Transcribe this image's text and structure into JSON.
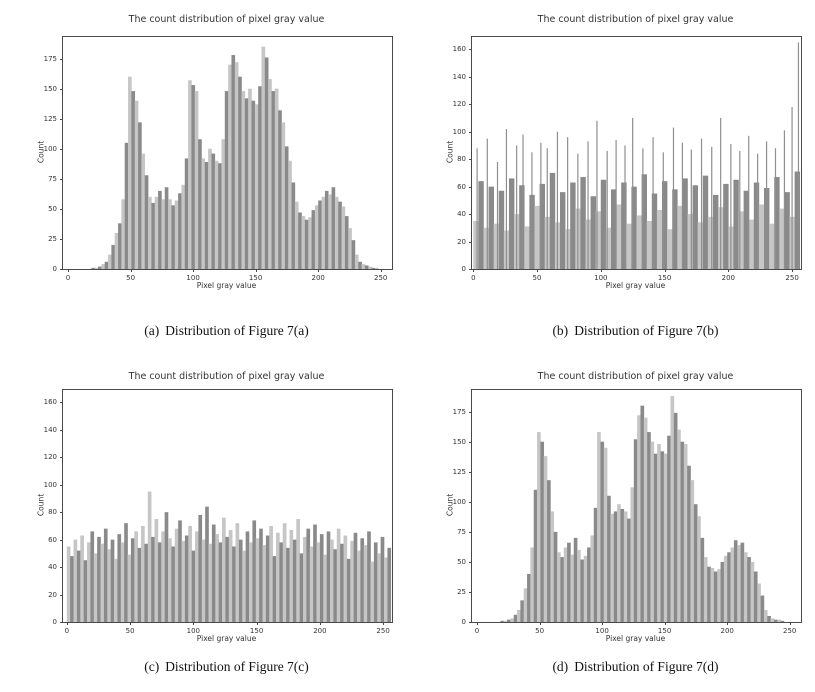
{
  "figure": {
    "captions": [
      {
        "label": "(a)",
        "text": "Distribution of Figure 7(a)"
      },
      {
        "label": "(b)",
        "text": "Distribution of Figure 7(b)"
      },
      {
        "label": "(c)",
        "text": "Distribution of Figure 7(c)"
      },
      {
        "label": "(d)",
        "text": "Distribution of Figure 7(d)"
      }
    ],
    "colors": {
      "bar_light": "#c6c6c6",
      "bar_dark": "#8a8a8a",
      "spike": "#8f8f8f",
      "axis": "#4a4a4a",
      "text": "#333333"
    }
  },
  "chart_data": [
    {
      "id": "a",
      "type": "bar",
      "subtype": "histogram",
      "title": "The count distribution of pixel gray value",
      "xlabel": "Pixel gray value",
      "ylabel": "Count",
      "xlim": [
        -4,
        259
      ],
      "ylim": [
        0,
        193
      ],
      "xticks": [
        0,
        50,
        100,
        150,
        200,
        250
      ],
      "yticks": [
        0,
        25,
        50,
        75,
        100,
        125,
        150,
        175
      ],
      "bin_width": 2.667,
      "values": [
        0,
        0,
        0,
        0,
        0,
        0,
        0,
        1,
        1,
        2,
        4,
        6,
        12,
        20,
        30,
        38,
        58,
        105,
        160,
        148,
        140,
        122,
        96,
        78,
        60,
        55,
        60,
        65,
        58,
        68,
        58,
        53,
        57,
        63,
        70,
        92,
        157,
        153,
        148,
        108,
        92,
        89,
        100,
        96,
        90,
        88,
        108,
        148,
        170,
        178,
        172,
        160,
        148,
        142,
        150,
        140,
        137,
        152,
        185,
        176,
        158,
        148,
        150,
        132,
        122,
        102,
        90,
        72,
        56,
        47,
        44,
        41,
        43,
        49,
        53,
        57,
        60,
        65,
        62,
        68,
        60,
        56,
        52,
        44,
        34,
        24,
        12,
        6,
        4,
        3,
        2,
        1,
        1,
        0,
        0,
        0
      ],
      "spikes": []
    },
    {
      "id": "b",
      "type": "bar",
      "subtype": "histogram",
      "title": "The count distribution of pixel gray value",
      "xlabel": "Pixel gray value",
      "ylabel": "Count",
      "xlim": [
        -1,
        257
      ],
      "ylim": [
        0,
        169
      ],
      "xticks": [
        0,
        50,
        100,
        150,
        200,
        250
      ],
      "yticks": [
        0,
        20,
        40,
        60,
        80,
        100,
        120,
        140,
        160
      ],
      "bin_width": 4,
      "values": [
        35,
        64,
        30,
        60,
        33,
        57,
        28,
        66,
        40,
        61,
        31,
        54,
        46,
        62,
        38,
        70,
        34,
        56,
        29,
        63,
        44,
        67,
        36,
        53,
        42,
        65,
        30,
        58,
        47,
        63,
        33,
        60,
        39,
        69,
        35,
        55,
        43,
        64,
        29,
        58,
        46,
        66,
        40,
        61,
        34,
        68,
        38,
        54,
        45,
        62,
        31,
        65,
        42,
        57,
        36,
        63,
        47,
        59,
        33,
        67,
        44,
        56,
        38,
        71
      ],
      "spikes": [
        [
          3,
          88
        ],
        [
          11,
          95
        ],
        [
          19,
          78
        ],
        [
          26,
          102
        ],
        [
          34,
          90
        ],
        [
          39,
          98
        ],
        [
          46,
          85
        ],
        [
          53,
          92
        ],
        [
          58,
          88
        ],
        [
          66,
          100
        ],
        [
          74,
          96
        ],
        [
          82,
          84
        ],
        [
          90,
          93
        ],
        [
          97,
          108
        ],
        [
          105,
          86
        ],
        [
          112,
          94
        ],
        [
          119,
          90
        ],
        [
          125,
          110
        ],
        [
          133,
          88
        ],
        [
          141,
          96
        ],
        [
          149,
          85
        ],
        [
          157,
          103
        ],
        [
          164,
          92
        ],
        [
          171,
          87
        ],
        [
          179,
          95
        ],
        [
          187,
          89
        ],
        [
          194,
          110
        ],
        [
          202,
          91
        ],
        [
          209,
          86
        ],
        [
          216,
          97
        ],
        [
          223,
          84
        ],
        [
          230,
          93
        ],
        [
          237,
          88
        ],
        [
          244,
          101
        ],
        [
          250,
          118
        ],
        [
          255,
          165
        ]
      ]
    },
    {
      "id": "c",
      "type": "bar",
      "subtype": "histogram",
      "title": "The count distribution of pixel gray value",
      "xlabel": "Pixel gray value",
      "ylabel": "Count",
      "xlim": [
        -3,
        257
      ],
      "ylim": [
        0,
        169
      ],
      "xticks": [
        0,
        50,
        100,
        150,
        200,
        250
      ],
      "yticks": [
        0,
        20,
        40,
        60,
        80,
        100,
        120,
        140,
        160
      ],
      "bin_width": 2.667,
      "values": [
        55,
        48,
        60,
        52,
        63,
        45,
        58,
        66,
        50,
        62,
        57,
        68,
        53,
        60,
        46,
        64,
        58,
        72,
        49,
        61,
        66,
        54,
        70,
        57,
        95,
        62,
        75,
        58,
        66,
        80,
        61,
        55,
        68,
        74,
        59,
        63,
        70,
        52,
        66,
        78,
        60,
        84,
        57,
        71,
        64,
        58,
        76,
        62,
        67,
        55,
        72,
        60,
        52,
        66,
        58,
        74,
        61,
        68,
        56,
        63,
        70,
        48,
        65,
        58,
        72,
        54,
        67,
        60,
        75,
        50,
        62,
        68,
        55,
        71,
        58,
        64,
        49,
        66,
        60,
        53,
        68,
        57,
        63,
        46,
        59,
        65,
        52,
        61,
        56,
        66,
        44,
        58,
        50,
        62,
        47,
        54
      ],
      "spikes": []
    },
    {
      "id": "d",
      "type": "bar",
      "subtype": "histogram",
      "title": "The count distribution of pixel gray value",
      "xlabel": "Pixel gray value",
      "ylabel": "Count",
      "xlim": [
        -4,
        259
      ],
      "ylim": [
        0,
        193
      ],
      "xticks": [
        0,
        50,
        100,
        150,
        200,
        250
      ],
      "yticks": [
        0,
        25,
        50,
        75,
        100,
        125,
        150,
        175
      ],
      "bin_width": 2.667,
      "values": [
        0,
        0,
        0,
        0,
        0,
        0,
        0,
        1,
        1,
        2,
        3,
        6,
        10,
        18,
        28,
        40,
        62,
        110,
        158,
        150,
        138,
        118,
        92,
        75,
        58,
        54,
        62,
        66,
        56,
        70,
        60,
        52,
        55,
        62,
        72,
        95,
        158,
        150,
        145,
        105,
        90,
        92,
        98,
        94,
        92,
        86,
        112,
        152,
        172,
        180,
        170,
        158,
        150,
        140,
        148,
        142,
        140,
        155,
        188,
        174,
        160,
        150,
        148,
        130,
        118,
        98,
        88,
        70,
        54,
        46,
        45,
        42,
        44,
        50,
        55,
        58,
        62,
        68,
        64,
        66,
        58,
        54,
        50,
        42,
        32,
        22,
        10,
        5,
        3,
        2,
        2,
        1,
        0,
        0,
        0,
        0
      ],
      "spikes": []
    }
  ]
}
